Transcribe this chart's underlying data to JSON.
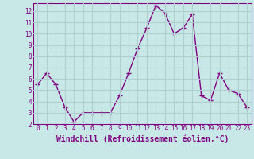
{
  "x": [
    0,
    1,
    2,
    3,
    4,
    5,
    6,
    7,
    8,
    9,
    10,
    11,
    12,
    13,
    14,
    15,
    16,
    17,
    18,
    19,
    20,
    21,
    22,
    23
  ],
  "y": [
    5.5,
    6.5,
    5.5,
    3.5,
    2.2,
    3.0,
    3.0,
    3.0,
    3.0,
    4.5,
    6.5,
    8.7,
    10.5,
    12.5,
    11.8,
    10.0,
    10.5,
    11.7,
    4.5,
    4.1,
    6.5,
    5.0,
    4.7,
    3.5
  ],
  "line_color": "#800080",
  "marker": "+",
  "marker_size": 4,
  "linewidth": 1.0,
  "xlabel": "Windchill (Refroidissement éolien,°C)",
  "xlabel_fontsize": 7,
  "bg_color": "#c8e8e8",
  "grid_color": "#b0d0d0",
  "xlim": [
    -0.5,
    23.5
  ],
  "ylim": [
    2,
    12.7
  ],
  "yticks": [
    2,
    3,
    4,
    5,
    6,
    7,
    8,
    9,
    10,
    11,
    12
  ],
  "xticks": [
    0,
    1,
    2,
    3,
    4,
    5,
    6,
    7,
    8,
    9,
    10,
    11,
    12,
    13,
    14,
    15,
    16,
    17,
    18,
    19,
    20,
    21,
    22,
    23
  ],
  "tick_fontsize": 5.5,
  "tick_color": "#800080",
  "spine_color": "#800080"
}
